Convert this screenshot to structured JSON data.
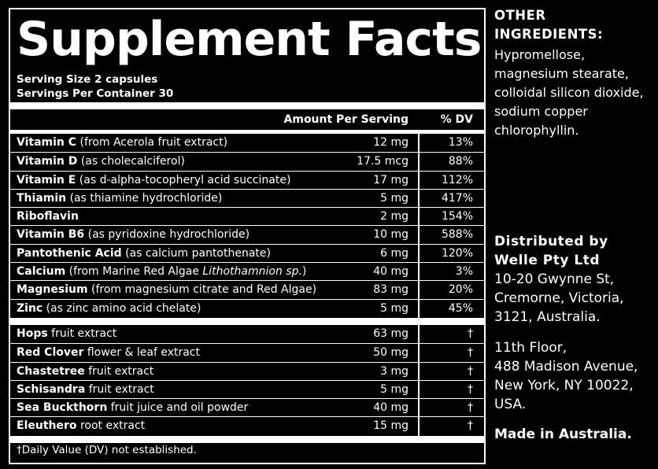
{
  "panel": {
    "title": "Supplement Facts",
    "serving_size": "Serving Size 2 capsules",
    "servings_per_container": "Servings Per Container 30",
    "header_amount": "Amount Per Serving",
    "header_dv": "% DV",
    "vitamins": [
      {
        "name": "Vitamin C",
        "desc": " (from Acerola fruit extract)",
        "amount": "12 mg",
        "dv": "13%"
      },
      {
        "name": "Vitamin D",
        "desc": " (as cholecalciferol)",
        "amount": "17.5 mcg",
        "dv": "88%"
      },
      {
        "name": "Vitamin E",
        "desc": " (as d-alpha-tocopheryl acid succinate)",
        "amount": "17 mg",
        "dv": "112%"
      },
      {
        "name": "Thiamin",
        "desc": " (as thiamine hydrochloride)",
        "amount": "5 mg",
        "dv": "417%"
      },
      {
        "name": "Riboflavin",
        "desc": "",
        "amount": "2 mg",
        "dv": "154%"
      },
      {
        "name": "Vitamin B6",
        "desc": " (as pyridoxine hydrochloride)",
        "amount": "10 mg",
        "dv": "588%"
      },
      {
        "name": "Pantothenic Acid",
        "desc": " (as calcium pantothenate)",
        "amount": "6 mg",
        "dv": "120%"
      },
      {
        "name": "Calcium",
        "desc": " (from Marine Red Algae ",
        "italic": "Lithothamnion sp.",
        "desc_end": ")",
        "amount": "40 mg",
        "dv": "3%"
      },
      {
        "name": "Magnesium",
        "desc": " (from magnesium citrate and Red Algae)",
        "amount": "83 mg",
        "dv": "20%"
      },
      {
        "name": "Zinc",
        "desc": " (as zinc amino acid chelate)",
        "amount": "5 mg",
        "dv": "45%"
      }
    ],
    "herbs": [
      {
        "name": "Hops",
        "desc": " fruit extract",
        "amount": "63 mg",
        "dv": "†"
      },
      {
        "name": "Red Clover",
        "desc": " flower & leaf extract",
        "amount": "50 mg",
        "dv": "†"
      },
      {
        "name": "Chastetree",
        "desc": " fruit extract",
        "amount": "3 mg",
        "dv": "†"
      },
      {
        "name": "Schisandra",
        "desc": " fruit extract",
        "amount": "5 mg",
        "dv": "†"
      },
      {
        "name": "Sea Buckthorn",
        "desc": " fruit juice and oil powder",
        "amount": "40 mg",
        "dv": "†"
      },
      {
        "name": "Eleuthero",
        "desc": " root extract",
        "amount": "15 mg",
        "dv": "†"
      }
    ],
    "footnote": "†Daily Value (DV) not established."
  },
  "other_ingredients": {
    "title_line1": "OTHER",
    "title_line2": "INGREDIENTS:",
    "lines": [
      "Hypromellose,",
      "magnesium stearate,",
      "colloidal silicon dioxide,",
      "sodium copper",
      "chlorophyllin."
    ]
  },
  "distributor": {
    "title_line1": "Distributed by",
    "title_line2": "Welle Pty Ltd",
    "address1": [
      "10-20 Gwynne St,",
      "Cremorne, Victoria,",
      "3121, Australia."
    ],
    "address2": [
      "11th Floor,",
      "488 Madison Avenue,",
      "New York, NY 10022,",
      "USA."
    ],
    "made_in": "Made in Australia."
  }
}
